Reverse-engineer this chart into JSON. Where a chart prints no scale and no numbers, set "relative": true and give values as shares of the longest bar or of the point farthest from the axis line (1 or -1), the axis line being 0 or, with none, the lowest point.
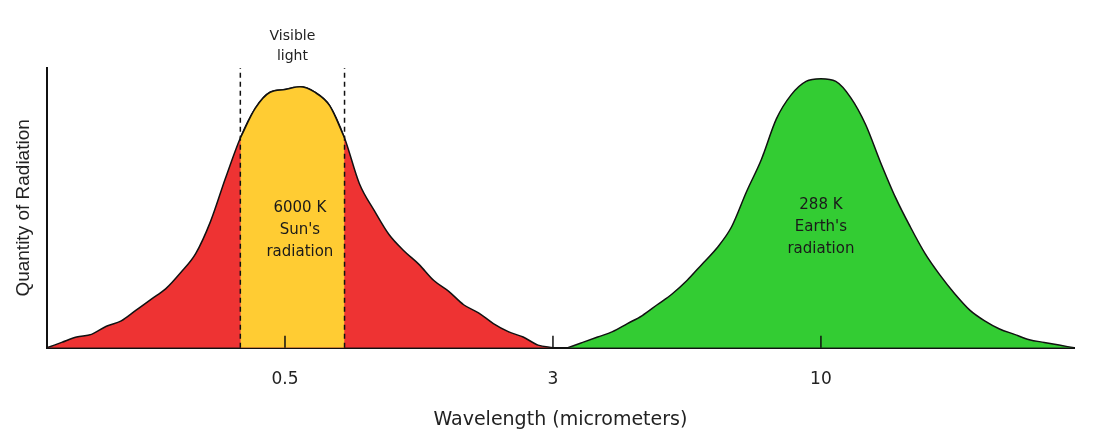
{
  "chart_data": {
    "type": "area",
    "relative": true,
    "xlabel": "Wavelength (micrometers)",
    "ylabel": "Quantity of Radiation",
    "categories": [
      null,
      null,
      null,
      null,
      null,
      null,
      null,
      null,
      null,
      null,
      null,
      null,
      null,
      null,
      null,
      null,
      "0.5",
      null,
      null,
      null,
      null,
      null,
      null,
      null,
      null,
      null,
      null,
      null,
      null,
      null,
      null,
      null,
      null,
      null,
      "3",
      null,
      null,
      null,
      null,
      null,
      null,
      null,
      null,
      null,
      null,
      null,
      null,
      null,
      null,
      null,
      null,
      null,
      "10",
      null,
      null,
      null,
      null,
      null,
      null,
      null,
      null,
      null,
      null,
      null,
      null,
      null,
      null,
      null,
      null,
      null
    ],
    "series": [
      {
        "name": "6000 K Sun's radiation",
        "color": "#ee3333",
        "values": [
          0,
          0.02,
          0.04,
          0.05,
          0.08,
          0.1,
          0.14,
          0.18,
          0.22,
          0.28,
          0.35,
          0.47,
          0.63,
          0.78,
          0.89,
          0.95,
          0.96,
          0.97,
          0.95,
          0.9,
          0.78,
          0.61,
          0.51,
          0.42,
          0.36,
          0.31,
          0.25,
          0.21,
          0.16,
          0.13,
          0.09,
          0.06,
          0.04,
          0.01,
          0,
          null,
          null,
          null,
          null,
          null,
          null,
          null,
          null,
          null,
          null,
          null,
          null,
          null,
          null,
          null,
          null,
          null,
          null,
          null,
          null,
          null,
          null,
          null,
          null,
          null,
          null,
          null,
          null,
          null,
          null,
          null,
          null,
          null,
          null,
          null
        ]
      },
      {
        "color": "#ffcc33",
        "values": [
          null,
          null,
          null,
          null,
          null,
          null,
          null,
          null,
          null,
          null,
          null,
          null,
          null,
          0.78,
          0.89,
          0.95,
          0.96,
          0.97,
          0.95,
          0.9,
          0.78,
          null,
          null,
          null,
          null,
          null,
          null,
          null,
          null,
          null,
          null,
          null,
          null,
          null,
          null,
          null,
          null,
          null,
          null,
          null,
          null,
          null,
          null,
          null,
          null,
          null,
          null,
          null,
          null,
          null,
          null,
          null,
          null,
          null,
          null,
          null,
          null,
          null,
          null,
          null,
          null,
          null,
          null,
          null,
          null,
          null,
          null,
          null,
          null,
          null
        ]
      },
      {
        "name": "288 K Earth's radiation",
        "color": "#33cc33",
        "values": [
          null,
          null,
          null,
          null,
          null,
          null,
          null,
          null,
          null,
          null,
          null,
          null,
          null,
          null,
          null,
          null,
          null,
          null,
          null,
          null,
          null,
          null,
          null,
          null,
          null,
          null,
          null,
          null,
          null,
          null,
          null,
          null,
          null,
          null,
          null,
          0,
          0.02,
          0.04,
          0.06,
          0.09,
          0.12,
          0.16,
          0.2,
          0.25,
          0.31,
          0.37,
          0.45,
          0.58,
          0.7,
          0.85,
          0.94,
          0.99,
          1.0,
          0.99,
          0.93,
          0.83,
          0.69,
          0.56,
          0.45,
          0.35,
          0.27,
          0.2,
          0.14,
          0.1,
          0.07,
          0.05,
          0.03,
          0.02,
          0.01,
          0
        ]
      }
    ],
    "annotations": [
      "Visible light"
    ]
  }
}
